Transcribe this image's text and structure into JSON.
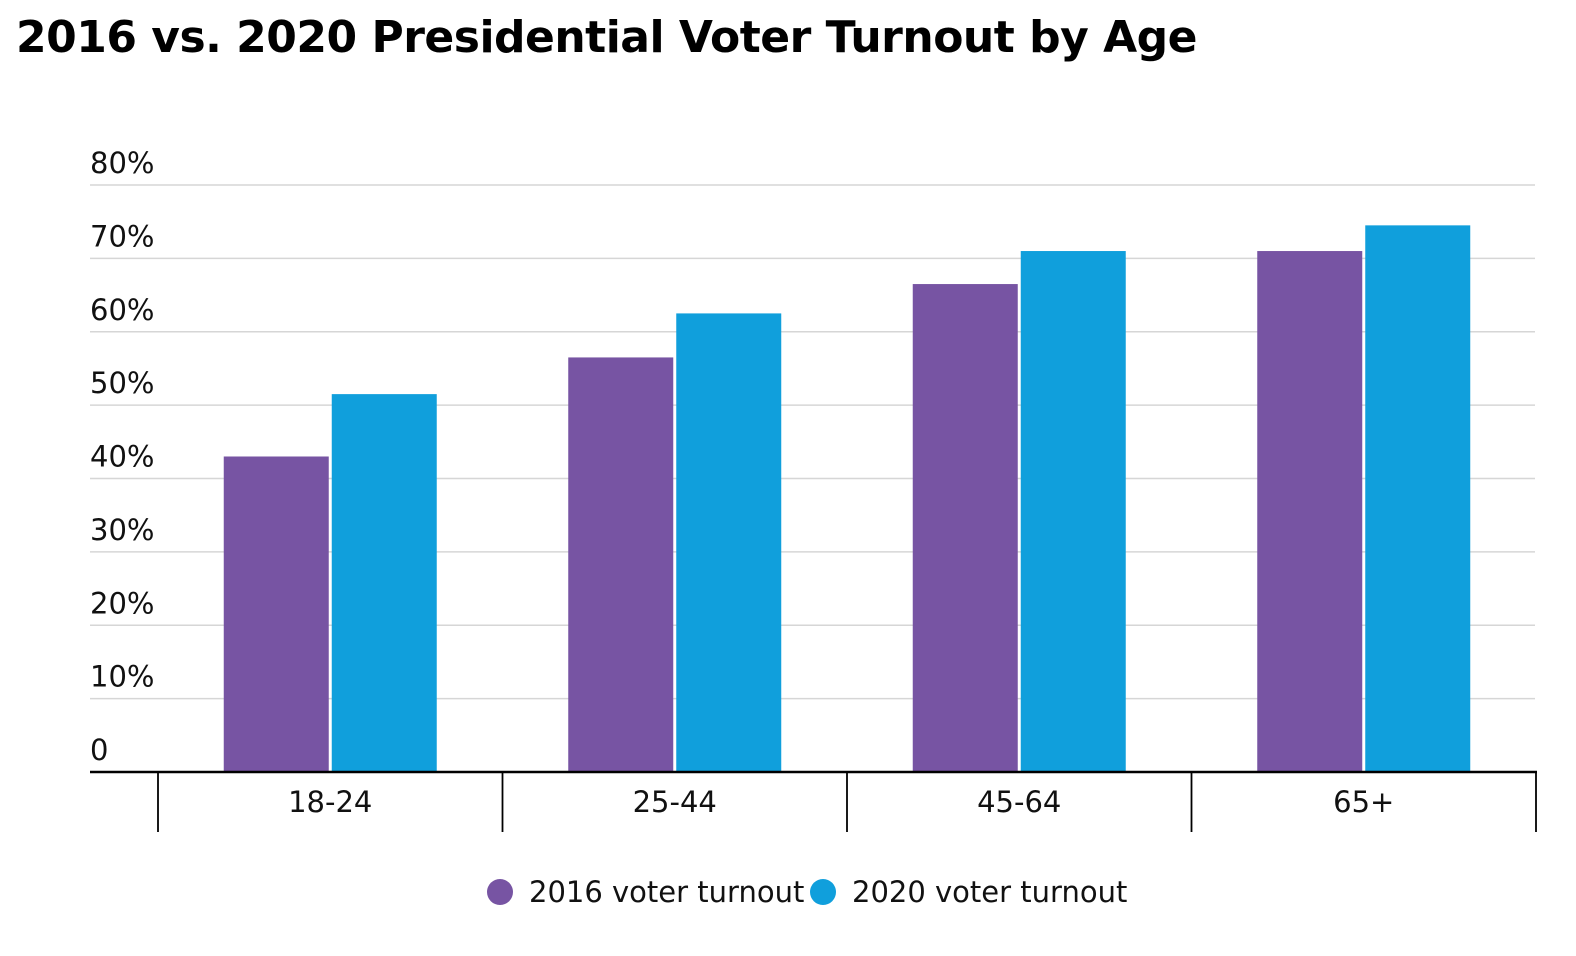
{
  "chart_data": {
    "type": "bar",
    "title": "2016 vs. 2020 Presidential Voter Turnout by Age",
    "xlabel": "",
    "ylabel": "",
    "categories": [
      "18-24",
      "25-44",
      "45-64",
      "65+"
    ],
    "series": [
      {
        "name": "2016 voter turnout",
        "color": "#7754a3",
        "values": [
          43,
          56.5,
          66.5,
          71
        ]
      },
      {
        "name": "2020 voter turnout",
        "color": "#109fdc",
        "values": [
          51.5,
          62.5,
          71,
          74.5
        ]
      }
    ],
    "ylim": [
      0,
      80
    ],
    "yticks": [
      0,
      10,
      20,
      30,
      40,
      50,
      60,
      70,
      80
    ],
    "ytick_labels": [
      "0",
      "10%",
      "20%",
      "30%",
      "40%",
      "50%",
      "60%",
      "70%",
      "80%"
    ],
    "grid": true,
    "legend_position": "bottom-center"
  }
}
